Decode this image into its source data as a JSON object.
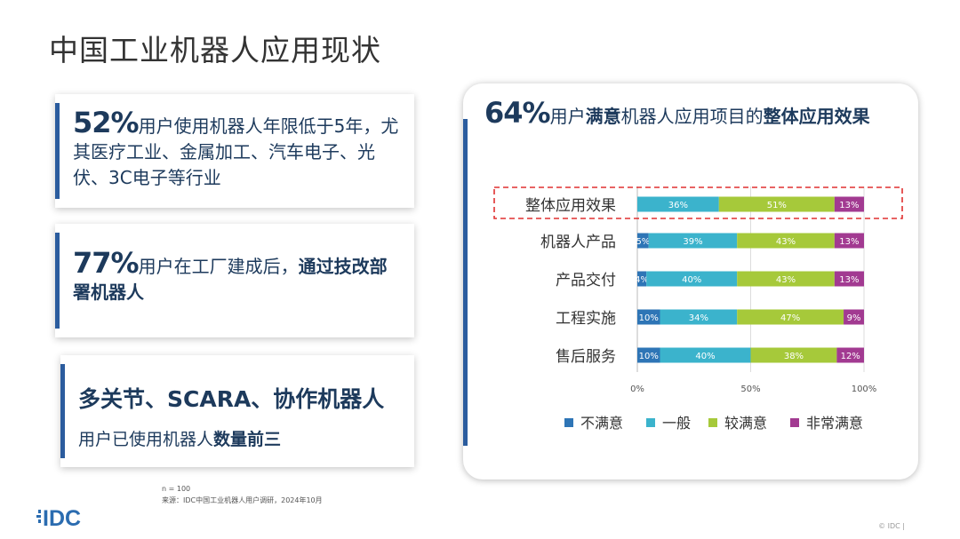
{
  "page_title": "中国工业机器人应用现状",
  "stats": [
    {
      "pct": "52%",
      "text": "用户使用机器人年限低于5年，尤其医疗工业、金属加工、汽车电子、光伏、3C电子等行业"
    },
    {
      "pct": "77%",
      "text_plain": "用户在工厂建成后，",
      "text_bold": "通过技改部署机器人"
    },
    {
      "line1": "多关节、SCARA、协作机器人",
      "line2_plain": "用户已使用机器人",
      "line2_bold": "数量前三"
    }
  ],
  "notes": {
    "n": "n = 100",
    "source": "来源：IDC中国工业机器人用户调研，2024年10月"
  },
  "logo": "IDC",
  "footer": "© IDC |",
  "chart_data": {
    "type": "bar",
    "orientation": "horizontal",
    "stacked": "percent",
    "title_parts": [
      {
        "text": "64%",
        "style": "big"
      },
      {
        "text": "用户",
        "style": "plain"
      },
      {
        "text": "满意",
        "style": "bold"
      },
      {
        "text": "机器人应用项目的",
        "style": "plain"
      },
      {
        "text": "整体应用效果",
        "style": "bold"
      }
    ],
    "categories": [
      "整体应用效果",
      "机器人产品",
      "产品交付",
      "工程实施",
      "售后服务"
    ],
    "highlight_category": "整体应用效果",
    "series": [
      {
        "name": "不满意",
        "color": "#2e75b6",
        "values": [
          0,
          5,
          4,
          10,
          10
        ]
      },
      {
        "name": "一般",
        "color": "#3bb3cc",
        "values": [
          36,
          39,
          40,
          34,
          40
        ]
      },
      {
        "name": "较满意",
        "color": "#a6c93a",
        "values": [
          51,
          43,
          43,
          47,
          38
        ]
      },
      {
        "name": "非常满意",
        "color": "#a23a91",
        "values": [
          13,
          13,
          13,
          9,
          12
        ]
      }
    ],
    "xlim": [
      0,
      100
    ],
    "xticks": [
      "0%",
      "50%",
      "100%"
    ],
    "grid": true,
    "legend": "bottom"
  }
}
